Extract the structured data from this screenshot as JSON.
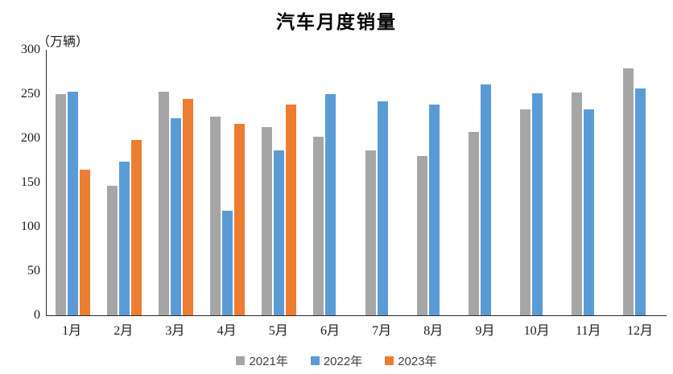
{
  "chart_data": {
    "type": "bar",
    "title": "汽车月度销量",
    "unit_label": "（万辆）",
    "categories": [
      "1月",
      "2月",
      "3月",
      "4月",
      "5月",
      "6月",
      "7月",
      "8月",
      "9月",
      "10月",
      "11月",
      "12月"
    ],
    "series": [
      {
        "name": "2021年",
        "color": "#A6A6A6",
        "values": [
          250,
          146,
          253,
          225,
          213,
          202,
          186,
          180,
          207,
          233,
          252,
          279
        ]
      },
      {
        "name": "2022年",
        "color": "#5B9BD5",
        "values": [
          253,
          174,
          223,
          118,
          186,
          250,
          242,
          238,
          261,
          251,
          233,
          256
        ]
      },
      {
        "name": "2023年",
        "color": "#ED7D31",
        "values": [
          165,
          198,
          245,
          216,
          238,
          null,
          null,
          null,
          null,
          null,
          null,
          null
        ]
      }
    ],
    "ylim": [
      0,
      300
    ],
    "yticks": [
      0,
      50,
      100,
      150,
      200,
      250,
      300
    ],
    "grid": false,
    "legend_position": "bottom"
  }
}
